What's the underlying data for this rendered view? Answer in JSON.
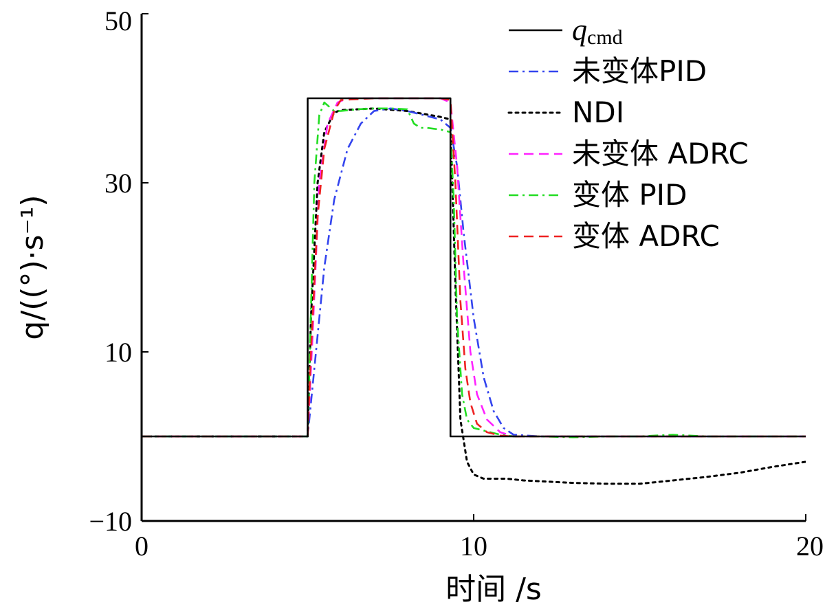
{
  "chart_data": {
    "type": "line",
    "xlabel": "时间 /s",
    "ylabel": "q/((°)·s⁻¹)",
    "xlim": [
      0,
      20
    ],
    "ylim": [
      -10,
      50
    ],
    "xticks": [
      0,
      10,
      20
    ],
    "yticks": [
      -10,
      10,
      30,
      50
    ],
    "xtick_labels": [
      "0",
      "10",
      "20"
    ],
    "ytick_labels": [
      "−10",
      "10",
      "30",
      "50"
    ],
    "grid": false,
    "legend_position": "top-right",
    "series": [
      {
        "name": "q_cmd",
        "label_main": "q",
        "label_sub": "cmd",
        "color": "#000000",
        "style": "solid",
        "x": [
          0,
          5,
          5,
          9.3,
          9.3,
          20
        ],
        "y": [
          0,
          0,
          40,
          40,
          0,
          0
        ]
      },
      {
        "name": "未变体PID",
        "color": "#3344ee",
        "style": "dashdot",
        "x": [
          0,
          5,
          5.2,
          5.5,
          5.8,
          6.2,
          6.6,
          7.0,
          7.5,
          8.0,
          8.5,
          9.0,
          9.3,
          9.5,
          9.7,
          10.0,
          10.3,
          10.6,
          10.9,
          11.2,
          12,
          15,
          20
        ],
        "y": [
          0,
          0,
          8,
          20,
          28,
          34,
          37,
          38.5,
          38.8,
          38.5,
          38,
          37.5,
          36.5,
          32,
          24,
          14,
          7,
          3,
          1,
          0.2,
          0,
          0,
          0
        ]
      },
      {
        "name": "NDI",
        "color": "#000000",
        "style": "dotted",
        "x": [
          0,
          5,
          5.1,
          5.3,
          5.5,
          5.8,
          6.0,
          7.0,
          8.0,
          9.0,
          9.3,
          9.45,
          9.6,
          9.8,
          10.0,
          10.3,
          10.7,
          11.0,
          11.5,
          12,
          13,
          14,
          15,
          16,
          17,
          18,
          19,
          20
        ],
        "y": [
          0,
          0,
          14,
          30,
          36,
          38.3,
          38.6,
          38.8,
          38.5,
          37.8,
          37.5,
          18,
          2,
          -3,
          -4.5,
          -5,
          -5,
          -5,
          -5.2,
          -5.3,
          -5.5,
          -5.6,
          -5.6,
          -5.2,
          -4.8,
          -4.3,
          -3.6,
          -3
        ]
      },
      {
        "name": "未变体 ADRC",
        "color": "#ff22ff",
        "style": "dashed",
        "x": [
          0,
          5,
          5.15,
          5.35,
          5.6,
          5.9,
          6.2,
          7,
          8,
          9,
          9.3,
          9.5,
          9.7,
          9.9,
          10.1,
          10.4,
          10.8,
          11.2,
          12,
          15,
          20
        ],
        "y": [
          0,
          0,
          12,
          30,
          37,
          39.5,
          40,
          40,
          40,
          40,
          39.5,
          32,
          20,
          10,
          5,
          2,
          0.5,
          0,
          0,
          0,
          0
        ]
      },
      {
        "name": "变体 PID",
        "color": "#22dd22",
        "style": "dashdot",
        "x": [
          0,
          5,
          5.1,
          5.2,
          5.35,
          5.5,
          5.65,
          5.8,
          6.0,
          6.5,
          7,
          7.5,
          8.0,
          8.2,
          8.4,
          8.6,
          8.8,
          9.0,
          9.3,
          9.4,
          9.5,
          9.65,
          9.8,
          10.0,
          10.2,
          10.5,
          10.8,
          11.2,
          12,
          13,
          14,
          15,
          16,
          17,
          18,
          19,
          20
        ],
        "y": [
          0,
          0,
          15,
          30,
          38,
          39.5,
          39,
          38.5,
          38.5,
          38.7,
          38.8,
          38.8,
          38.7,
          37,
          36.5,
          36.5,
          36.4,
          36.3,
          36.0,
          28,
          14,
          5,
          2,
          1,
          0.8,
          0.5,
          0.2,
          0,
          0,
          -0.1,
          0,
          0,
          0.2,
          0,
          0,
          0,
          0
        ]
      },
      {
        "name": "变体 ADRC",
        "color": "#ee2222",
        "style": "dashed",
        "x": [
          0,
          5,
          5.1,
          5.3,
          5.5,
          5.8,
          6.0,
          7,
          8,
          9,
          9.3,
          9.45,
          9.6,
          9.75,
          9.9,
          10.1,
          10.4,
          10.8,
          11.2,
          12,
          15,
          20
        ],
        "y": [
          0,
          0,
          10,
          26,
          34,
          38.5,
          39.8,
          40,
          40,
          40,
          39.8,
          30,
          16,
          8,
          4,
          1.5,
          0.5,
          0.1,
          0,
          0,
          0,
          0
        ]
      }
    ]
  }
}
